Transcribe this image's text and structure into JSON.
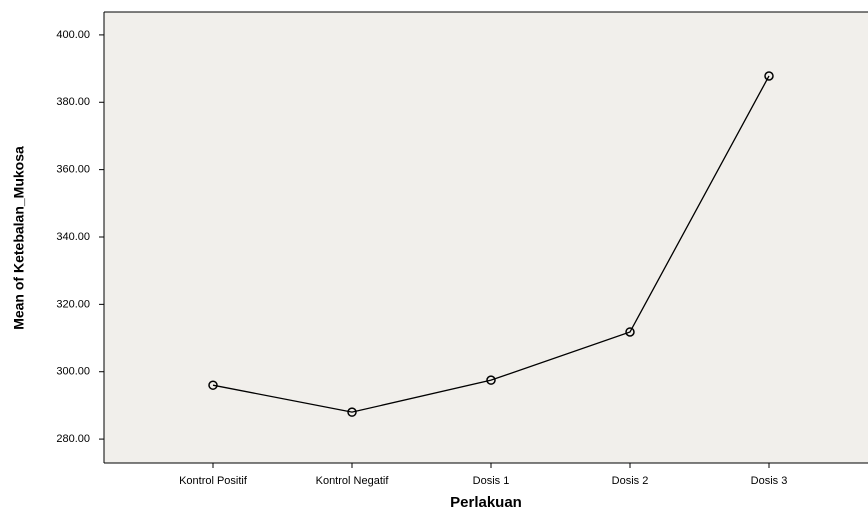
{
  "chart_data": {
    "type": "line",
    "x_label": "Perlakuan",
    "y_label": "Mean of Ketebalan_Mukosa",
    "categories": [
      "Kontrol Positif",
      "Kontrol Negatif",
      "Dosis 1",
      "Dosis 2",
      "Dosis 3"
    ],
    "series": [
      {
        "name": "Mean of Ketebalan_Mukosa",
        "color": "#000000",
        "values": [
          296.0,
          288.0,
          297.5,
          311.8,
          387.8
        ]
      }
    ],
    "ylim": [
      272.9,
      406.8
    ],
    "yticks": [
      {
        "value": 280,
        "label": "280.00"
      },
      {
        "value": 300,
        "label": "300.00"
      },
      {
        "value": 320,
        "label": "320.00"
      },
      {
        "value": 340,
        "label": "340.00"
      },
      {
        "value": 360,
        "label": "360.00"
      },
      {
        "value": 380,
        "label": "380.00"
      },
      {
        "value": 400,
        "label": "400.00"
      }
    ],
    "grid": false
  }
}
